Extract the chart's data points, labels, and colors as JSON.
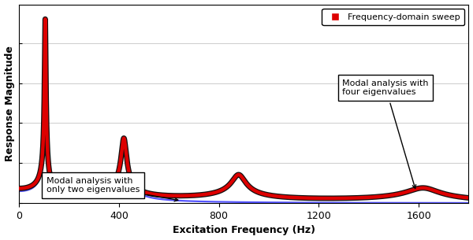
{
  "xlabel": "Excitation Frequency (Hz)",
  "ylabel": "Response Magnitude",
  "xlim": [
    0,
    1800
  ],
  "xticks": [
    0,
    400,
    800,
    1200,
    1600
  ],
  "background_color": "#ffffff",
  "grid_color": "#cccccc",
  "modal_peaks_4": [
    105,
    420,
    880,
    1620
  ],
  "modal_damping_4": [
    0.025,
    0.025,
    0.032,
    0.04
  ],
  "modal_amplitudes_4": [
    3.5,
    1.2,
    0.65,
    0.45
  ],
  "modal_peaks_2": [
    105,
    420
  ],
  "modal_damping_2": [
    0.025,
    0.025
  ],
  "modal_amplitudes_2": [
    3.5,
    1.2
  ],
  "sweep_color": "#dd0000",
  "modal4_color": "#111111",
  "modal2_color": "#5555ff",
  "legend_label": "Frequency-domain sweep",
  "annot1_text": "Modal analysis with\nonly two eigenvalues",
  "annot2_text": "Modal analysis with\nfour eigenvalues"
}
